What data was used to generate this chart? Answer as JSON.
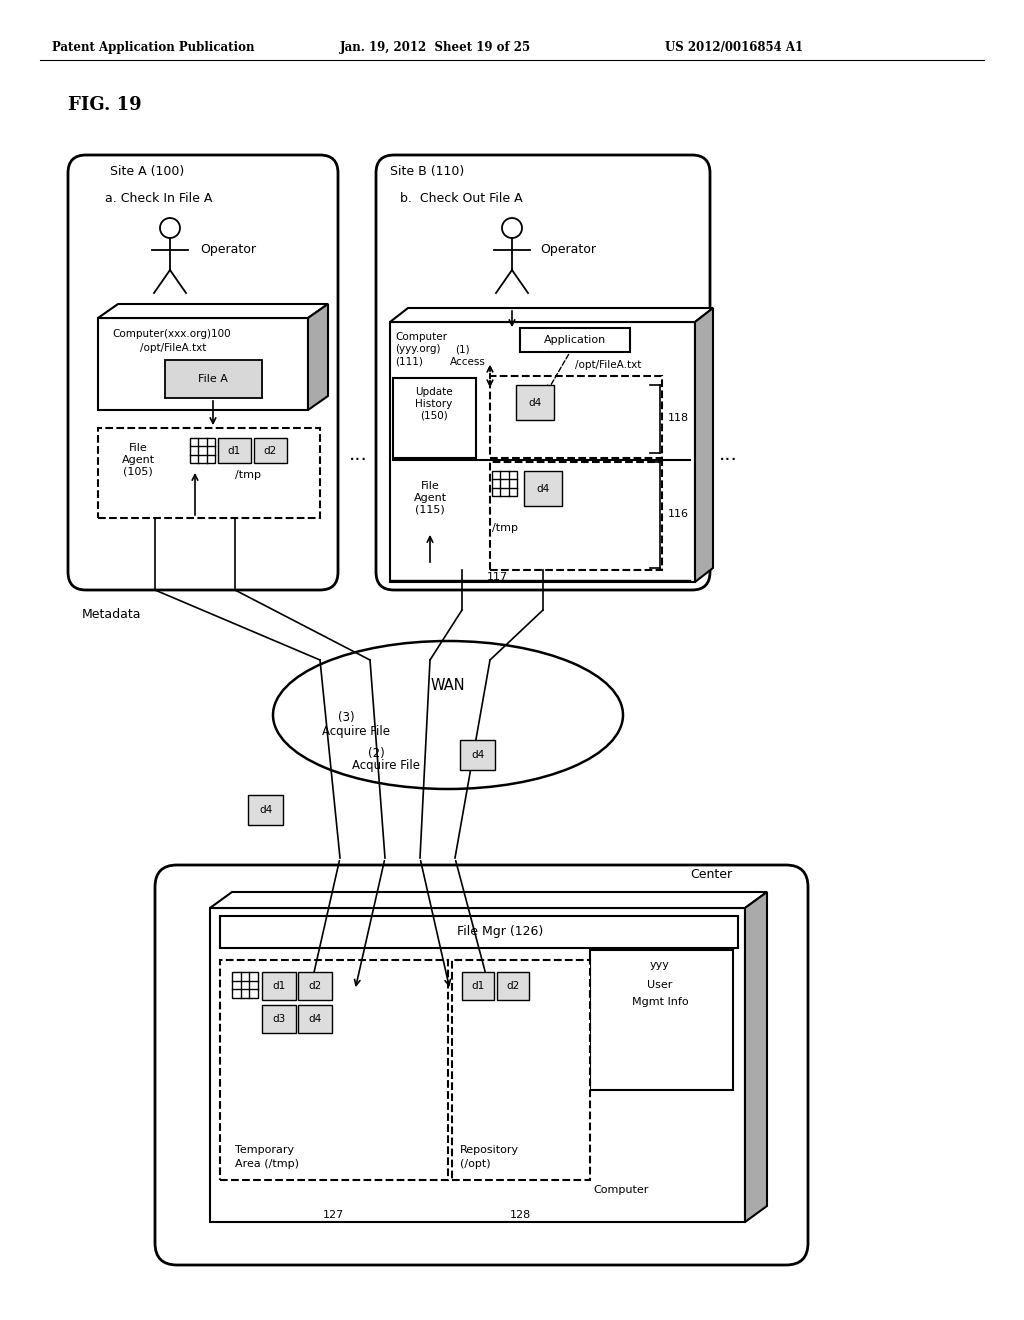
{
  "header_left": "Patent Application Publication",
  "header_mid": "Jan. 19, 2012  Sheet 19 of 25",
  "header_right": "US 2012/0016854 A1",
  "bg_color": "#ffffff",
  "gray_shade": "#aaaaaa",
  "light_gray": "#cccccc",
  "mid_gray": "#bbbbbb",
  "dot_fill": "#dddddd"
}
